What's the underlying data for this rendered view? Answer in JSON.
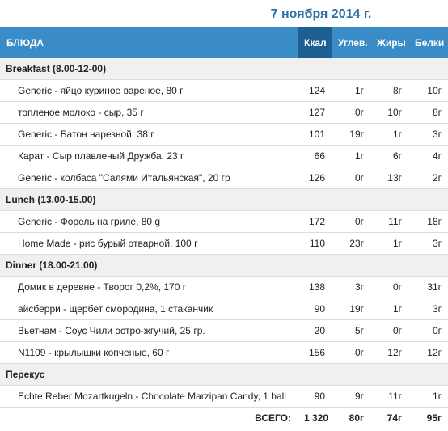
{
  "header": {
    "date": "7 ноября 2014 г."
  },
  "table": {
    "columns": [
      "БЛЮДА",
      "Ккал",
      "Углев.",
      "Жиры",
      "Белки"
    ],
    "sections": [
      {
        "title": "Breakfast (8.00-12-00)",
        "rows": [
          [
            "Generic - яйцо куриное вареное, 80 г",
            "124",
            "1г",
            "8г",
            "10г"
          ],
          [
            "топленое молоко - сыр, 35 г",
            "127",
            "0г",
            "10г",
            "8г"
          ],
          [
            "Generic - Батон нарезной, 38 г",
            "101",
            "19г",
            "1г",
            "3г"
          ],
          [
            "Карат - Сыр плавленый Дружба, 23 г",
            "66",
            "1г",
            "6г",
            "4г"
          ],
          [
            "Generic - колбаса \"Салями Итальянская\", 20 гр",
            "126",
            "0г",
            "13г",
            "2г"
          ]
        ]
      },
      {
        "title": "Lunch (13.00-15.00)",
        "rows": [
          [
            "Generic - Форель на гриле, 80 g",
            "172",
            "0г",
            "11г",
            "18г"
          ],
          [
            "Home Made - рис бурый отварной, 100 г",
            "110",
            "23г",
            "1г",
            "3г"
          ]
        ]
      },
      {
        "title": "Dinner (18.00-21.00)",
        "rows": [
          [
            "Домик в деревне - Творог 0,2%, 170 г",
            "138",
            "3г",
            "0г",
            "31г"
          ],
          [
            "айсберри - щербет смородина, 1 стаканчик",
            "90",
            "19г",
            "1г",
            "3г"
          ],
          [
            "Вьетнам - Соус Чили остро-жгучий, 25 гр.",
            "20",
            "5г",
            "0г",
            "0г"
          ],
          [
            "N1109 - крылышки копченые, 60 г",
            "156",
            "0г",
            "12г",
            "12г"
          ]
        ]
      },
      {
        "title": "Перекус",
        "rows": [
          [
            "Echte Reber Mozartkugeln - Chocolate Marzipan Candy, 1 ball",
            "90",
            "9г",
            "11г",
            "1г"
          ]
        ]
      }
    ],
    "total": [
      "ВСЕГО:",
      "1 320",
      "80г",
      "74г",
      "95г"
    ]
  }
}
